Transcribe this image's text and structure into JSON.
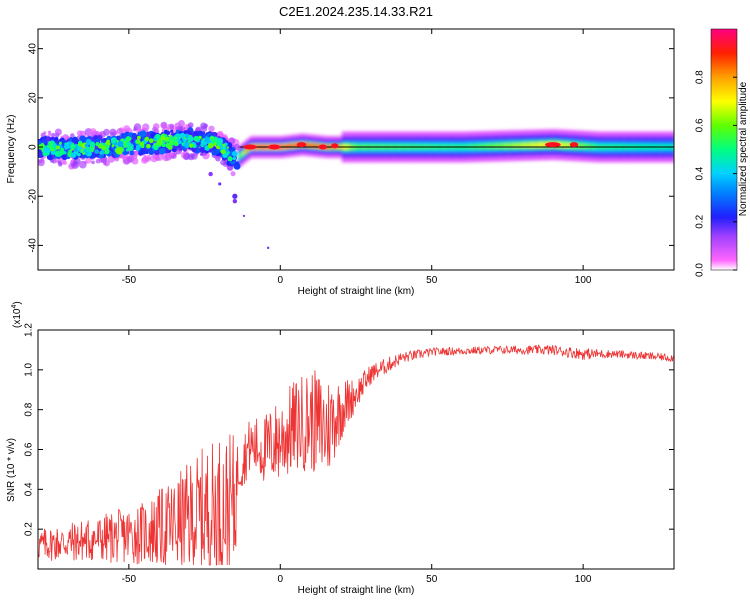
{
  "title": "C2E1.2024.235.14.33.R21",
  "chart_data": [
    {
      "type": "heatmap",
      "name": "spectrogram",
      "xlabel": "Height of straight line (km)",
      "ylabel": "Frequency (Hz)",
      "xlim": [
        -80,
        130
      ],
      "ylim": [
        -50,
        48
      ],
      "xticks": [
        -50,
        0,
        50,
        100
      ],
      "yticks": [
        -40,
        -20,
        0,
        20,
        40
      ],
      "colorbar": {
        "label": "Normalized spectral amplitude",
        "range": [
          0,
          1
        ],
        "ticks": [
          "0.0",
          "0.2",
          "0.4",
          "0.6",
          "0.8"
        ],
        "tick_values": [
          0.0,
          0.2,
          0.4,
          0.6,
          0.8
        ],
        "colormap": [
          "#ff00ff",
          "#8000ff",
          "#0000ff",
          "#00c8ff",
          "#00ff80",
          "#80ff00",
          "#ffff00",
          "#ff8000",
          "#ff0000",
          "#ff0080"
        ]
      },
      "ridge_frequency_hz": 0,
      "description_points": [
        {
          "x": -78,
          "f": 0,
          "amp": 0.45
        },
        {
          "x": -70,
          "f": -1,
          "amp": 0.5
        },
        {
          "x": -60,
          "f": 0,
          "amp": 0.5
        },
        {
          "x": -50,
          "f": 1,
          "amp": 0.5
        },
        {
          "x": -40,
          "f": 2,
          "amp": 0.5
        },
        {
          "x": -30,
          "f": 3,
          "amp": 0.55
        },
        {
          "x": -20,
          "f": 1,
          "amp": 0.5
        },
        {
          "x": -15,
          "f": -5,
          "amp": 0.45
        },
        {
          "x": -10,
          "f": 0,
          "amp": 0.95
        },
        {
          "x": 0,
          "f": 0,
          "amp": 0.95
        },
        {
          "x": 7,
          "f": 1,
          "amp": 0.9
        },
        {
          "x": 15,
          "f": 0,
          "amp": 0.9
        },
        {
          "x": 25,
          "f": 0,
          "amp": 0.6
        },
        {
          "x": 60,
          "f": 0,
          "amp": 0.55
        },
        {
          "x": 90,
          "f": 1,
          "amp": 0.75
        },
        {
          "x": 105,
          "f": 0,
          "amp": 0.55
        },
        {
          "x": 130,
          "f": 0,
          "amp": 0.5
        }
      ]
    },
    {
      "type": "line",
      "name": "snr",
      "xlabel": "Height of straight line (km)",
      "ylabel": "SNR (10 * v/v)",
      "multiplier_label": "(x10",
      "multiplier_exp": "4",
      "multiplier_close": ")",
      "xlim": [
        -80,
        130
      ],
      "ylim": [
        0.0,
        1.2
      ],
      "xticks": [
        -50,
        0,
        50,
        100
      ],
      "yticks": [
        "0.2",
        "0.4",
        "0.6",
        "0.8",
        "1.0",
        "1.2"
      ],
      "ytick_values": [
        0.2,
        0.4,
        0.6,
        0.8,
        1.0,
        1.2
      ],
      "color": "#ee3333",
      "envelope": {
        "x": [
          -80,
          -60,
          -45,
          -35,
          -25,
          -20,
          -15,
          -14,
          -10,
          -5,
          0,
          5,
          10,
          15,
          20,
          25,
          30,
          40,
          50,
          70,
          90,
          100,
          110,
          130
        ],
        "mean": [
          0.12,
          0.15,
          0.18,
          0.22,
          0.28,
          0.3,
          0.32,
          0.5,
          0.62,
          0.6,
          0.65,
          0.72,
          0.75,
          0.7,
          0.8,
          0.88,
          0.98,
          1.06,
          1.09,
          1.1,
          1.1,
          1.08,
          1.08,
          1.06
        ],
        "spread": [
          0.08,
          0.12,
          0.16,
          0.24,
          0.34,
          0.38,
          0.36,
          0.14,
          0.14,
          0.18,
          0.22,
          0.24,
          0.26,
          0.28,
          0.16,
          0.08,
          0.05,
          0.03,
          0.02,
          0.02,
          0.025,
          0.03,
          0.02,
          0.02
        ]
      }
    }
  ]
}
